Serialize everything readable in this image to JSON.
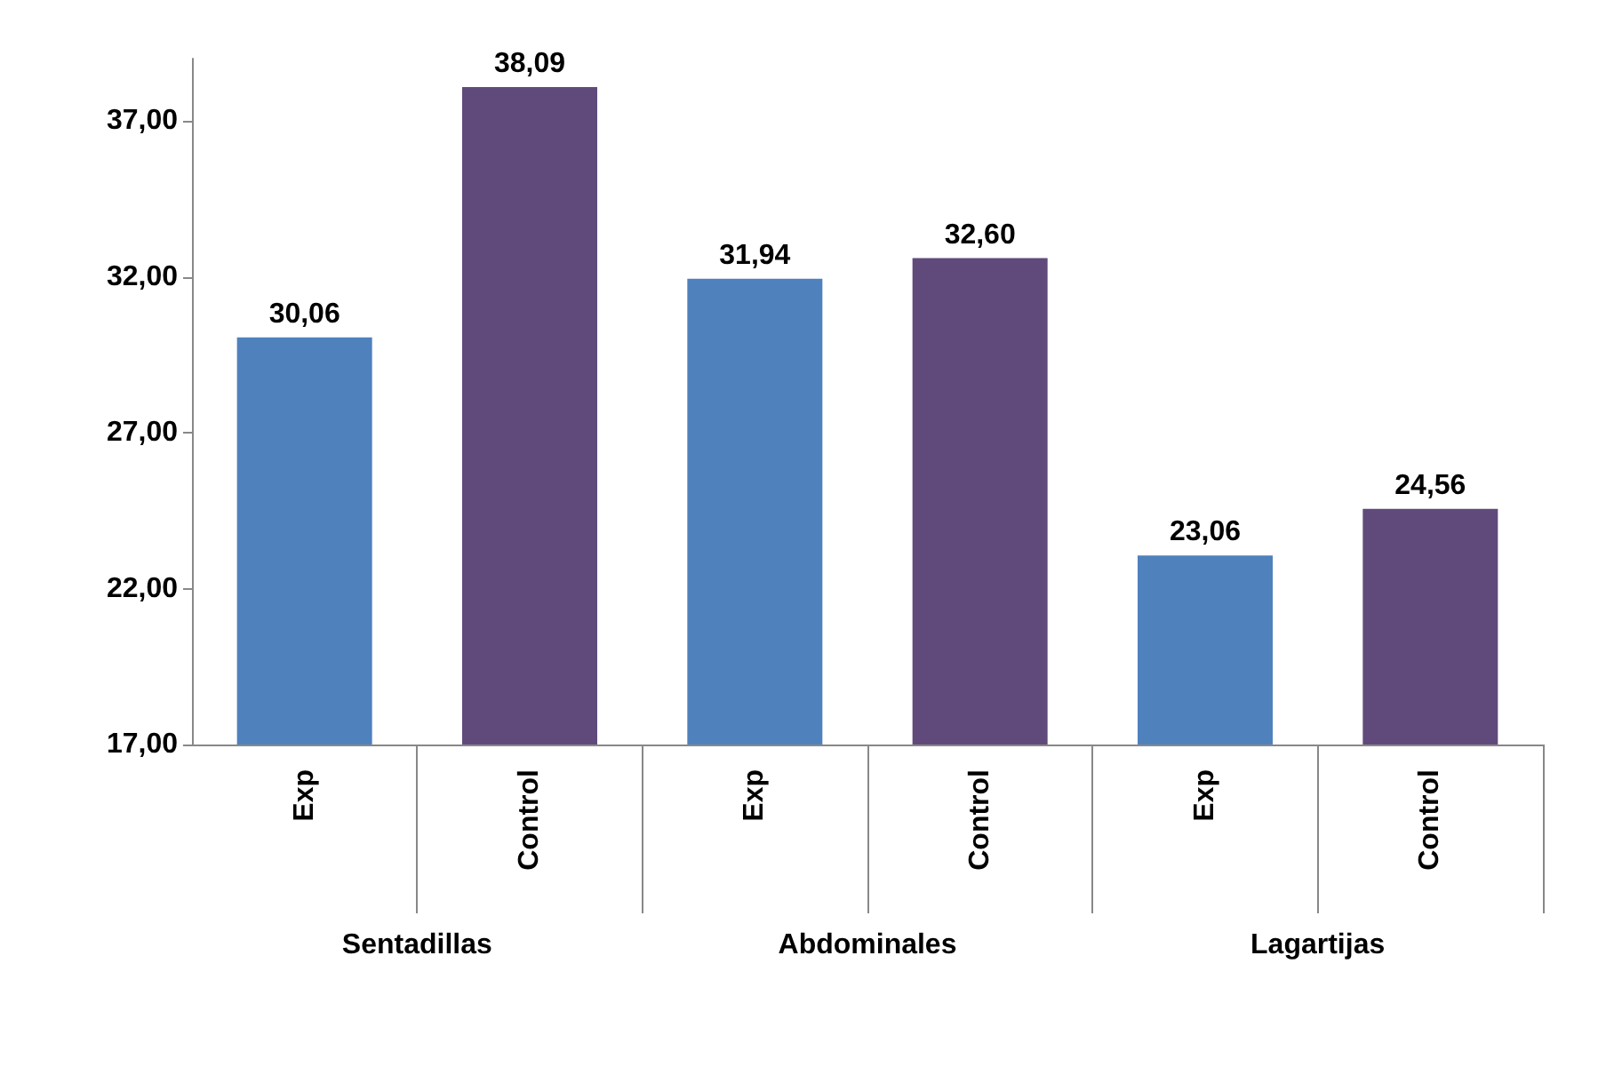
{
  "chart_data": {
    "type": "bar",
    "categories": [
      "Sentadillas",
      "Abdominales",
      "Lagartijas"
    ],
    "series": [
      {
        "name": "Exp",
        "color": "#4f81bd",
        "values": [
          30.06,
          31.94,
          23.06
        ],
        "value_labels": [
          "30,06",
          "31,94",
          "23,06"
        ]
      },
      {
        "name": "Control",
        "color": "#604a7b",
        "values": [
          38.09,
          32.6,
          24.56
        ],
        "value_labels": [
          "38,09",
          "32,60",
          "24,56"
        ]
      }
    ],
    "ylim": [
      17,
      39
    ],
    "yticks": [
      {
        "value": 17,
        "label": "17,00"
      },
      {
        "value": 22,
        "label": "22,00"
      },
      {
        "value": 27,
        "label": "27,00"
      },
      {
        "value": 32,
        "label": "32,00"
      },
      {
        "value": 37,
        "label": "37,00"
      }
    ]
  }
}
